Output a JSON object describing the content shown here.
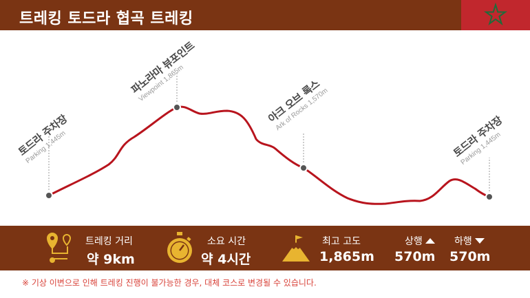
{
  "header": {
    "title": "트레킹  토드라 협곡 트레킹",
    "flag_icon": "morocco-flag-icon",
    "flag_color": "#c1272d",
    "star_color": "#1f6b3a"
  },
  "chart_data": {
    "type": "line",
    "title": "",
    "points": [
      {
        "ko": "토드라 주차장",
        "en": "Parking 1,445m",
        "elevation": 1445
      },
      {
        "ko": "파노라마 뷰포인트",
        "en": "Viewpoint 1,865m",
        "elevation": 1865
      },
      {
        "ko": "아크 오브 록스",
        "en": "Ark of Rocks 1,570m",
        "elevation": 1570
      },
      {
        "ko": "토드라 주차장",
        "en": "Parking 1,445m",
        "elevation": 1445
      }
    ],
    "line_color": "#b8141d"
  },
  "info": {
    "distance_label": "트레킹 거리",
    "distance_value": "약 9km",
    "time_label": "소요 시간",
    "time_value": "약 4시간",
    "altitude_label": "최고 고도",
    "altitude_value": "1,865m",
    "ascent_label": "상행",
    "ascent_value": "570m",
    "descent_label": "하행",
    "descent_value": "570m",
    "icon_color": "#e8b430"
  },
  "note": "※ 기상 이변으로 인해 트레킹 진행이 불가능한 경우, 대체 코스로 변경될 수 있습니다."
}
